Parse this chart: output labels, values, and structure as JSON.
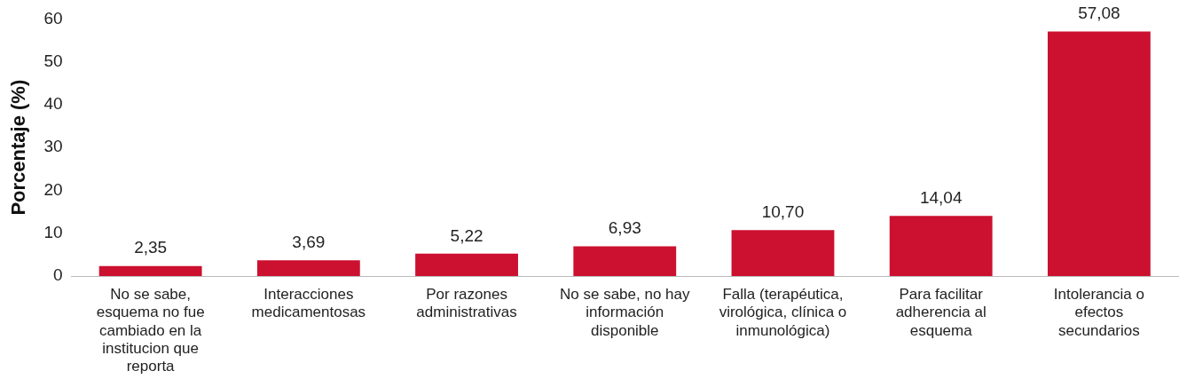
{
  "chart_data": {
    "type": "bar",
    "ylabel": "Porcentaje (%)",
    "categories": [
      "No se sabe, esquema no fue cambiado en la institucion que reporta",
      "Interacciones medicamentosas",
      "Por razones administrativas",
      "No se sabe, no hay información disponible",
      "Falla (terapéutica, virológica, clínica o inmunológica)",
      "Para facilitar adherencia al esquema",
      "Intolerancia o efectos secundarios"
    ],
    "values": [
      2.35,
      3.69,
      5.22,
      6.93,
      10.7,
      14.04,
      57.08
    ],
    "value_labels": [
      "2,35",
      "3,69",
      "5,22",
      "6,93",
      "10,70",
      "14,04",
      "57,08"
    ],
    "color": "#cc1030",
    "ylim": [
      0,
      60
    ],
    "yticks": [
      0,
      10,
      20,
      30,
      40,
      50,
      60
    ],
    "grid": false,
    "legend": false
  }
}
